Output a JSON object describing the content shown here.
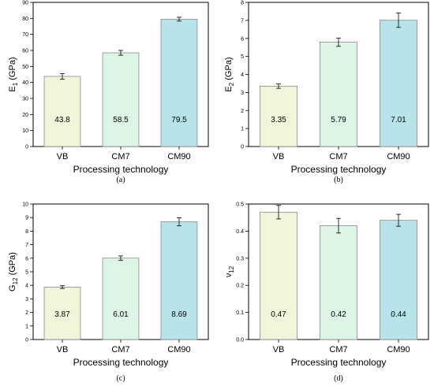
{
  "chart_data": [
    {
      "type": "bar",
      "panel_label": "(a)",
      "categories": [
        "VB",
        "CM7",
        "CM90"
      ],
      "values": [
        43.8,
        58.5,
        79.5
      ],
      "value_labels": [
        "43.8",
        "58.5",
        "79.5"
      ],
      "errors": [
        1.7,
        1.5,
        1.2
      ],
      "colors": [
        "#f0f5d9",
        "#dcf5e6",
        "#b8e3eb"
      ],
      "xlabel": "Processing technology",
      "ylabel_main": "E",
      "ylabel_sub": "1",
      "ylabel_unit": " (GPa)",
      "ylim": [
        0,
        90
      ],
      "yticks": [
        0,
        10,
        20,
        30,
        40,
        50,
        60,
        70,
        80,
        90
      ],
      "ytick_labels": [
        "0",
        "10",
        "20",
        "30",
        "40",
        "50",
        "60",
        "70",
        "80",
        "90"
      ],
      "grid": false
    },
    {
      "type": "bar",
      "panel_label": "(b)",
      "categories": [
        "VB",
        "CM7",
        "CM90"
      ],
      "values": [
        3.35,
        5.79,
        7.01
      ],
      "value_labels": [
        "3.35",
        "5.79",
        "7.01"
      ],
      "errors": [
        0.12,
        0.23,
        0.4
      ],
      "colors": [
        "#f0f5d9",
        "#dcf5e6",
        "#b8e3eb"
      ],
      "xlabel": "Processing technology",
      "ylabel_main": "E",
      "ylabel_sub": "2",
      "ylabel_unit": " (GPa)",
      "ylim": [
        0,
        8
      ],
      "yticks": [
        0,
        1,
        2,
        3,
        4,
        5,
        6,
        7,
        8
      ],
      "ytick_labels": [
        "0",
        "1",
        "2",
        "3",
        "4",
        "5",
        "6",
        "7",
        "8"
      ],
      "grid": false
    },
    {
      "type": "bar",
      "panel_label": "(c)",
      "categories": [
        "VB",
        "CM7",
        "CM90"
      ],
      "values": [
        3.87,
        6.01,
        8.69
      ],
      "value_labels": [
        "3.87",
        "6.01",
        "8.69"
      ],
      "errors": [
        0.1,
        0.16,
        0.3
      ],
      "colors": [
        "#f0f5d9",
        "#dcf5e6",
        "#b8e3eb"
      ],
      "xlabel": "Processing technology",
      "ylabel_main": "G",
      "ylabel_sub": "12",
      "ylabel_unit": " (GPa)",
      "ylim": [
        0,
        10
      ],
      "yticks": [
        0,
        1,
        2,
        3,
        4,
        5,
        6,
        7,
        8,
        9,
        10
      ],
      "ytick_labels": [
        "0",
        "1",
        "2",
        "3",
        "4",
        "5",
        "6",
        "7",
        "8",
        "9",
        "10"
      ],
      "grid": false
    },
    {
      "type": "bar",
      "panel_label": "(d)",
      "categories": [
        "VB",
        "CM7",
        "CM90"
      ],
      "values": [
        0.47,
        0.42,
        0.44
      ],
      "value_labels": [
        "0.47",
        "0.42",
        "0.44"
      ],
      "errors": [
        0.025,
        0.027,
        0.022
      ],
      "colors": [
        "#f0f5d9",
        "#dcf5e6",
        "#b8e3eb"
      ],
      "xlabel": "Processing technology",
      "ylabel_main": "ν",
      "ylabel_sub": "12",
      "ylabel_unit": "",
      "ylim": [
        0,
        0.5
      ],
      "yticks": [
        0,
        0.1,
        0.2,
        0.3,
        0.4,
        0.5
      ],
      "ytick_labels": [
        "0.0",
        "0.1",
        "0.2",
        "0.3",
        "0.4",
        "0.5"
      ],
      "grid": false
    }
  ]
}
